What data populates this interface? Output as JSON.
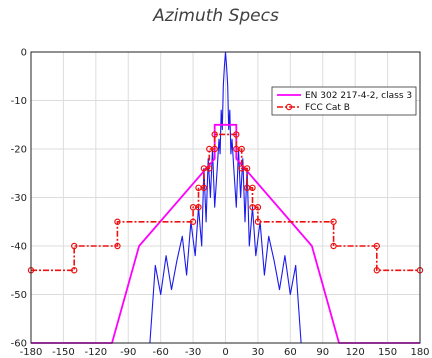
{
  "chart_data": {
    "type": "line",
    "title": "Azimuth Specs",
    "xlabel": "",
    "ylabel": "",
    "xlim": [
      -180,
      180
    ],
    "ylim": [
      -60,
      0
    ],
    "xticks": [
      -180,
      -150,
      -120,
      -90,
      -60,
      -30,
      0,
      30,
      60,
      90,
      120,
      150,
      180
    ],
    "yticks": [
      0,
      -10,
      -20,
      -30,
      -40,
      -50,
      -60
    ],
    "grid": true,
    "legend_position": "top-right",
    "colors": {
      "en": "#ff00ff",
      "fcc": "#ee1111",
      "pattern": "#1a1aee"
    },
    "series": [
      {
        "name": "EN 302 217-4-2, class 3",
        "style": "solid",
        "x": [
          -180,
          -105,
          -80,
          -10,
          -10,
          10,
          10,
          80,
          105,
          180
        ],
        "y": [
          -60,
          -60,
          -40,
          -22,
          -15,
          -15,
          -22,
          -40,
          -60,
          -60
        ]
      },
      {
        "name": "FCC Cat B",
        "style": "dash-dot-circles",
        "x": [
          -180,
          -140,
          -140,
          -100,
          -100,
          -30,
          -30,
          -25,
          -25,
          -20,
          -20,
          -15,
          -15,
          -10,
          -10,
          10,
          10,
          15,
          15,
          20,
          20,
          25,
          25,
          30,
          30,
          100,
          100,
          140,
          140,
          180
        ],
        "y": [
          -45,
          -45,
          -40,
          -40,
          -35,
          -35,
          -32,
          -32,
          -28,
          -28,
          -24,
          -24,
          -20,
          -20,
          -17,
          -17,
          -20,
          -20,
          -24,
          -24,
          -28,
          -28,
          -32,
          -32,
          -35,
          -35,
          -40,
          -40,
          -45,
          -45
        ]
      },
      {
        "name": "",
        "style": "solid",
        "x": [
          -180,
          -70,
          -65,
          -60,
          -55,
          -50,
          -45,
          -40,
          -36,
          -32,
          -28,
          -25,
          -22,
          -20,
          -18,
          -16,
          -14,
          -12,
          -10,
          -8,
          -6,
          -5,
          -4,
          -3,
          -2,
          -1,
          0,
          1,
          2,
          3,
          4,
          5,
          6,
          8,
          10,
          12,
          14,
          16,
          18,
          20,
          22,
          25,
          28,
          32,
          36,
          40,
          45,
          50,
          55,
          60,
          65,
          70,
          180
        ],
        "y": [
          -60,
          -60,
          -44,
          -50,
          -42,
          -49,
          -43,
          -38,
          -46,
          -35,
          -42,
          -32,
          -40,
          -24,
          -35,
          -22,
          -30,
          -20,
          -32,
          -25,
          -18,
          -21,
          -12,
          -16,
          -7,
          -3,
          0,
          -3,
          -7,
          -16,
          -12,
          -21,
          -18,
          -25,
          -32,
          -20,
          -30,
          -22,
          -35,
          -24,
          -40,
          -32,
          -42,
          -35,
          -46,
          -38,
          -43,
          -49,
          -42,
          -50,
          -44,
          -60,
          -60
        ]
      }
    ]
  }
}
